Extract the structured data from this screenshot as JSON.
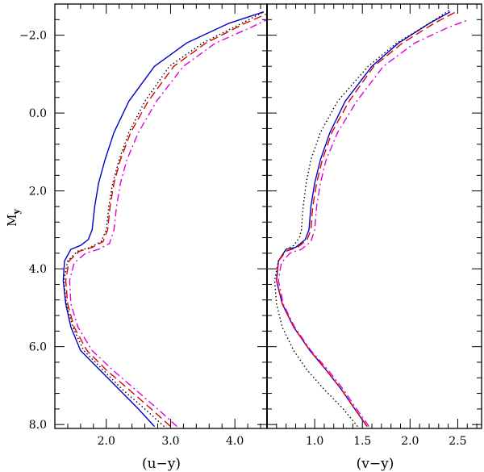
{
  "chart_data": [
    {
      "type": "line",
      "panel": "left",
      "xlabel": "(u−y)",
      "ylabel": "M",
      "ylabel_sub": "y",
      "xlim": [
        1.2,
        4.5
      ],
      "ylim": [
        8.1,
        -2.8
      ],
      "y_inverted": true,
      "xticks": [
        2.0,
        3.0,
        4.0
      ],
      "xtick_labels": [
        "2.0",
        "3.0",
        "4.0"
      ],
      "yticks": [
        -2.0,
        0.0,
        2.0,
        4.0,
        6.0,
        8.0
      ],
      "ytick_labels": [
        "−2.0",
        "0.0",
        "2.0",
        "4.0",
        "6.0",
        "8.0"
      ],
      "grid": false,
      "series": [
        {
          "color": "#0000cc",
          "style": "solid",
          "points": [
            [
              2.75,
              8.05
            ],
            [
              2.5,
              7.6
            ],
            [
              2.2,
              7.1
            ],
            [
              1.9,
              6.6
            ],
            [
              1.6,
              6.1
            ],
            [
              1.45,
              5.5
            ],
            [
              1.37,
              4.9
            ],
            [
              1.33,
              4.3
            ],
            [
              1.35,
              3.8
            ],
            [
              1.45,
              3.5
            ],
            [
              1.6,
              3.4
            ],
            [
              1.72,
              3.25
            ],
            [
              1.78,
              3.0
            ],
            [
              1.82,
              2.4
            ],
            [
              1.88,
              1.8
            ],
            [
              1.98,
              1.2
            ],
            [
              2.12,
              0.5
            ],
            [
              2.35,
              -0.3
            ],
            [
              2.75,
              -1.2
            ],
            [
              3.25,
              -1.8
            ],
            [
              3.9,
              -2.3
            ],
            [
              4.45,
              -2.6
            ]
          ]
        },
        {
          "color": "#000000",
          "style": "dotted",
          "points": [
            [
              2.9,
              8.05
            ],
            [
              2.6,
              7.6
            ],
            [
              2.25,
              7.1
            ],
            [
              1.95,
              6.6
            ],
            [
              1.65,
              6.1
            ],
            [
              1.48,
              5.5
            ],
            [
              1.38,
              4.9
            ],
            [
              1.34,
              4.3
            ],
            [
              1.4,
              3.8
            ],
            [
              1.55,
              3.55
            ],
            [
              1.75,
              3.45
            ],
            [
              1.92,
              3.3
            ],
            [
              2.0,
              3.0
            ],
            [
              2.04,
              2.4
            ],
            [
              2.1,
              1.8
            ],
            [
              2.2,
              1.2
            ],
            [
              2.35,
              0.5
            ],
            [
              2.6,
              -0.3
            ],
            [
              2.98,
              -1.2
            ],
            [
              3.5,
              -1.8
            ],
            [
              4.1,
              -2.3
            ],
            [
              4.45,
              -2.6
            ]
          ]
        },
        {
          "color": "#dd0000",
          "style": "dashed",
          "points": [
            [
              3.0,
              8.05
            ],
            [
              2.7,
              7.6
            ],
            [
              2.35,
              7.1
            ],
            [
              2.0,
              6.6
            ],
            [
              1.7,
              6.1
            ],
            [
              1.5,
              5.5
            ],
            [
              1.4,
              4.9
            ],
            [
              1.37,
              4.3
            ],
            [
              1.42,
              3.8
            ],
            [
              1.58,
              3.55
            ],
            [
              1.78,
              3.45
            ],
            [
              1.95,
              3.3
            ],
            [
              2.02,
              3.0
            ],
            [
              2.06,
              2.4
            ],
            [
              2.12,
              1.8
            ],
            [
              2.22,
              1.2
            ],
            [
              2.38,
              0.5
            ],
            [
              2.65,
              -0.3
            ],
            [
              3.05,
              -1.2
            ],
            [
              3.55,
              -1.8
            ],
            [
              4.15,
              -2.3
            ],
            [
              4.5,
              -2.55
            ]
          ]
        },
        {
          "color": "#dd00dd",
          "style": "dash-dot",
          "points": [
            [
              3.1,
              8.05
            ],
            [
              2.8,
              7.6
            ],
            [
              2.45,
              7.1
            ],
            [
              2.1,
              6.6
            ],
            [
              1.78,
              6.1
            ],
            [
              1.56,
              5.5
            ],
            [
              1.45,
              4.9
            ],
            [
              1.43,
              4.3
            ],
            [
              1.5,
              3.85
            ],
            [
              1.68,
              3.6
            ],
            [
              1.88,
              3.5
            ],
            [
              2.05,
              3.35
            ],
            [
              2.12,
              3.0
            ],
            [
              2.16,
              2.4
            ],
            [
              2.22,
              1.8
            ],
            [
              2.32,
              1.2
            ],
            [
              2.5,
              0.5
            ],
            [
              2.78,
              -0.3
            ],
            [
              3.2,
              -1.2
            ],
            [
              3.7,
              -1.8
            ],
            [
              4.25,
              -2.2
            ],
            [
              4.5,
              -2.4
            ]
          ]
        }
      ]
    },
    {
      "type": "line",
      "panel": "right",
      "xlabel": "(v−y)",
      "xlim": [
        0.5,
        2.75
      ],
      "ylim": [
        8.1,
        -2.8
      ],
      "y_inverted": true,
      "xticks": [
        1.0,
        1.5,
        2.0,
        2.5
      ],
      "xtick_labels": [
        "1.0",
        "1.5",
        "2.0",
        "2.5"
      ],
      "yticks": [
        -2.0,
        0.0,
        2.0,
        4.0,
        6.0,
        8.0
      ],
      "grid": false,
      "series": [
        {
          "color": "#0000cc",
          "style": "solid",
          "points": [
            [
              1.55,
              8.05
            ],
            [
              1.42,
              7.6
            ],
            [
              1.28,
              7.1
            ],
            [
              1.12,
              6.6
            ],
            [
              0.95,
              6.1
            ],
            [
              0.78,
              5.5
            ],
            [
              0.66,
              4.9
            ],
            [
              0.6,
              4.3
            ],
            [
              0.62,
              3.8
            ],
            [
              0.7,
              3.5
            ],
            [
              0.8,
              3.45
            ],
            [
              0.9,
              3.25
            ],
            [
              0.94,
              3.0
            ],
            [
              0.96,
              2.4
            ],
            [
              1.0,
              1.8
            ],
            [
              1.06,
              1.2
            ],
            [
              1.16,
              0.5
            ],
            [
              1.32,
              -0.3
            ],
            [
              1.6,
              -1.2
            ],
            [
              1.88,
              -1.8
            ],
            [
              2.2,
              -2.3
            ],
            [
              2.42,
              -2.6
            ]
          ]
        },
        {
          "color": "#000000",
          "style": "dotted",
          "points": [
            [
              1.45,
              8.05
            ],
            [
              1.3,
              7.6
            ],
            [
              1.1,
              7.1
            ],
            [
              0.92,
              6.6
            ],
            [
              0.78,
              6.1
            ],
            [
              0.66,
              5.5
            ],
            [
              0.6,
              4.9
            ],
            [
              0.58,
              4.3
            ],
            [
              0.62,
              3.8
            ],
            [
              0.7,
              3.5
            ],
            [
              0.78,
              3.4
            ],
            [
              0.84,
              3.2
            ],
            [
              0.86,
              3.0
            ],
            [
              0.88,
              2.4
            ],
            [
              0.91,
              1.8
            ],
            [
              0.96,
              1.2
            ],
            [
              1.06,
              0.5
            ],
            [
              1.24,
              -0.3
            ],
            [
              1.56,
              -1.2
            ],
            [
              1.86,
              -1.8
            ],
            [
              2.2,
              -2.3
            ],
            [
              2.42,
              -2.65
            ]
          ]
        },
        {
          "color": "#dd0000",
          "style": "dashed",
          "points": [
            [
              1.55,
              8.05
            ],
            [
              1.42,
              7.6
            ],
            [
              1.28,
              7.1
            ],
            [
              1.12,
              6.6
            ],
            [
              0.95,
              6.1
            ],
            [
              0.78,
              5.5
            ],
            [
              0.66,
              4.9
            ],
            [
              0.6,
              4.3
            ],
            [
              0.62,
              3.8
            ],
            [
              0.7,
              3.55
            ],
            [
              0.82,
              3.45
            ],
            [
              0.92,
              3.25
            ],
            [
              0.96,
              3.0
            ],
            [
              0.98,
              2.4
            ],
            [
              1.02,
              1.8
            ],
            [
              1.08,
              1.2
            ],
            [
              1.18,
              0.5
            ],
            [
              1.36,
              -0.3
            ],
            [
              1.62,
              -1.2
            ],
            [
              1.92,
              -1.8
            ],
            [
              2.25,
              -2.3
            ],
            [
              2.48,
              -2.6
            ]
          ]
        },
        {
          "color": "#dd00dd",
          "style": "dash-dot",
          "points": [
            [
              1.57,
              8.05
            ],
            [
              1.44,
              7.6
            ],
            [
              1.3,
              7.1
            ],
            [
              1.14,
              6.6
            ],
            [
              0.96,
              6.1
            ],
            [
              0.79,
              5.5
            ],
            [
              0.67,
              4.9
            ],
            [
              0.62,
              4.3
            ],
            [
              0.65,
              3.85
            ],
            [
              0.74,
              3.6
            ],
            [
              0.86,
              3.5
            ],
            [
              0.96,
              3.3
            ],
            [
              1.0,
              3.0
            ],
            [
              1.02,
              2.4
            ],
            [
              1.06,
              1.8
            ],
            [
              1.12,
              1.2
            ],
            [
              1.24,
              0.5
            ],
            [
              1.44,
              -0.3
            ],
            [
              1.72,
              -1.2
            ],
            [
              2.05,
              -1.8
            ],
            [
              2.4,
              -2.2
            ],
            [
              2.62,
              -2.4
            ]
          ]
        }
      ]
    }
  ]
}
